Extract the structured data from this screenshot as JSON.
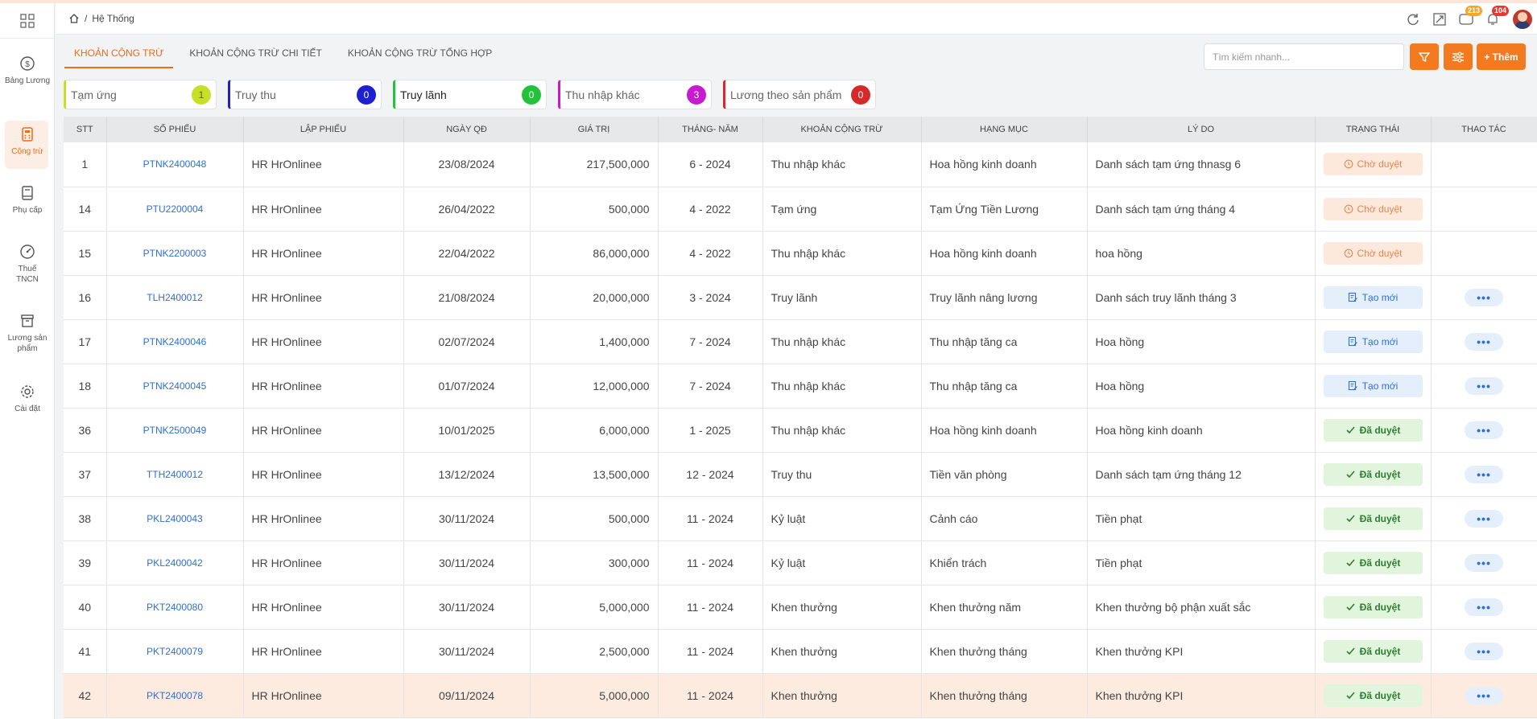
{
  "breadcrumb": {
    "home_icon": "home-icon",
    "sep": "/",
    "current": "Hệ Thống"
  },
  "sidebar": {
    "items": [
      {
        "label": "Bảng Lương",
        "icon": "dollar-icon"
      },
      {
        "label": "Cộng trừ",
        "icon": "calculator-icon",
        "active": true
      },
      {
        "label": "Phụ cấp",
        "icon": "book-icon"
      },
      {
        "label": "Thuế TNCN",
        "icon": "gauge-icon"
      },
      {
        "label": "Lương sản phẩm",
        "icon": "box-icon"
      },
      {
        "label": "Cài đặt",
        "icon": "gear-icon"
      }
    ]
  },
  "header": {
    "badge_messages": "213",
    "badge_notifications": "104"
  },
  "tabs": [
    "KHOẢN CỘNG TRỪ",
    "KHOẢN CỘNG TRỪ CHI TIẾT",
    "KHOẢN CỘNG TRỪ TỔNG HỢP"
  ],
  "search": {
    "placeholder": "Tìm kiếm nhanh..."
  },
  "add_button": "+ Thêm",
  "cards": [
    {
      "label": "Tạm ứng",
      "count": "1",
      "color": "#c6e02a"
    },
    {
      "label": "Truy thu",
      "count": "0",
      "color": "#1d1fd0"
    },
    {
      "label": "Truy lãnh",
      "count": "0",
      "color": "#22c23b"
    },
    {
      "label": "Thu nhập khác",
      "count": "3",
      "color": "#c81ad0"
    },
    {
      "label": "Lương theo sản phẩm",
      "count": "0",
      "color": "#d42a2a"
    }
  ],
  "table": {
    "headers": [
      "STT",
      "SỐ PHIẾU",
      "LẬP PHIẾU",
      "NGÀY QĐ",
      "GIÁ TRỊ",
      "THÁNG- NĂM",
      "KHOẢN CỘNG TRỪ",
      "HẠNG MỤC",
      "LÝ DO",
      "TRẠNG THÁI",
      "THAO TÁC"
    ],
    "rows": [
      {
        "stt": "1",
        "so_phieu": "PTNK2400048",
        "lap_phieu": "HR HrOnlinee",
        "ngay": "23/08/2024",
        "gia_tri": "217,500,000",
        "thang": "6 - 2024",
        "khoan": "Thu nhập khác",
        "hang_muc": "Hoa hồng kinh doanh",
        "ly_do": "Danh sách tạm ứng thnasg 6",
        "status": "Chờ duyệt",
        "status_type": "pending",
        "action": false
      },
      {
        "stt": "14",
        "so_phieu": "PTU2200004",
        "lap_phieu": "HR HrOnlinee",
        "ngay": "26/04/2022",
        "gia_tri": "500,000",
        "thang": "4 - 2022",
        "khoan": "Tạm ứng",
        "hang_muc": "Tạm Ứng Tiền Lương",
        "ly_do": "Danh sách tạm ứng tháng 4",
        "status": "Chờ duyệt",
        "status_type": "pending",
        "action": false
      },
      {
        "stt": "15",
        "so_phieu": "PTNK2200003",
        "lap_phieu": "HR HrOnlinee",
        "ngay": "22/04/2022",
        "gia_tri": "86,000,000",
        "thang": "4 - 2022",
        "khoan": "Thu nhập khác",
        "hang_muc": "Hoa hồng kinh doanh",
        "ly_do": "hoa hồng",
        "status": "Chờ duyệt",
        "status_type": "pending",
        "action": false
      },
      {
        "stt": "16",
        "so_phieu": "TLH2400012",
        "lap_phieu": "HR HrOnlinee",
        "ngay": "21/08/2024",
        "gia_tri": "20,000,000",
        "thang": "3 - 2024",
        "khoan": "Truy lãnh",
        "hang_muc": "Truy lãnh nâng lương",
        "ly_do": "Danh sách truy lãnh tháng 3",
        "status": "Tạo mới",
        "status_type": "new",
        "action": true
      },
      {
        "stt": "17",
        "so_phieu": "PTNK2400046",
        "lap_phieu": "HR HrOnlinee",
        "ngay": "02/07/2024",
        "gia_tri": "1,400,000",
        "thang": "7 - 2024",
        "khoan": "Thu nhập khác",
        "hang_muc": "Thu nhập tăng ca",
        "ly_do": "Hoa hồng",
        "status": "Tạo mới",
        "status_type": "new",
        "action": true
      },
      {
        "stt": "18",
        "so_phieu": "PTNK2400045",
        "lap_phieu": "HR HrOnlinee",
        "ngay": "01/07/2024",
        "gia_tri": "12,000,000",
        "thang": "7 - 2024",
        "khoan": "Thu nhập khác",
        "hang_muc": "Thu nhập tăng ca",
        "ly_do": "Hoa hồng",
        "status": "Tạo mới",
        "status_type": "new",
        "action": true
      },
      {
        "stt": "36",
        "so_phieu": "PTNK2500049",
        "lap_phieu": "HR HrOnlinee",
        "ngay": "10/01/2025",
        "gia_tri": "6,000,000",
        "thang": "1 - 2025",
        "khoan": "Thu nhập khác",
        "hang_muc": "Hoa hồng kinh doanh",
        "ly_do": "Hoa hồng kinh doanh",
        "status": "Đã duyệt",
        "status_type": "done",
        "action": true
      },
      {
        "stt": "37",
        "so_phieu": "TTH2400012",
        "lap_phieu": "HR HrOnlinee",
        "ngay": "13/12/2024",
        "gia_tri": "13,500,000",
        "thang": "12 - 2024",
        "khoan": "Truy thu",
        "hang_muc": "Tiền văn phòng",
        "ly_do": "Danh sách tạm ứng tháng 12",
        "status": "Đã duyệt",
        "status_type": "done",
        "action": true
      },
      {
        "stt": "38",
        "so_phieu": "PKL2400043",
        "lap_phieu": "HR HrOnlinee",
        "ngay": "30/11/2024",
        "gia_tri": "500,000",
        "thang": "11 - 2024",
        "khoan": "Kỷ luật",
        "hang_muc": "Cảnh cáo",
        "ly_do": "Tiền phạt",
        "status": "Đã duyệt",
        "status_type": "done",
        "action": true
      },
      {
        "stt": "39",
        "so_phieu": "PKL2400042",
        "lap_phieu": "HR HrOnlinee",
        "ngay": "30/11/2024",
        "gia_tri": "300,000",
        "thang": "11 - 2024",
        "khoan": "Kỷ luật",
        "hang_muc": "Khiển trách",
        "ly_do": "Tiền phạt",
        "status": "Đã duyệt",
        "status_type": "done",
        "action": true
      },
      {
        "stt": "40",
        "so_phieu": "PKT2400080",
        "lap_phieu": "HR HrOnlinee",
        "ngay": "30/11/2024",
        "gia_tri": "5,000,000",
        "thang": "11 - 2024",
        "khoan": "Khen thưởng",
        "hang_muc": "Khen thưởng năm",
        "ly_do": "Khen thưởng bộ phận xuất sắc",
        "status": "Đã duyệt",
        "status_type": "done",
        "action": true
      },
      {
        "stt": "41",
        "so_phieu": "PKT2400079",
        "lap_phieu": "HR HrOnlinee",
        "ngay": "30/11/2024",
        "gia_tri": "2,500,000",
        "thang": "11 - 2024",
        "khoan": "Khen thưởng",
        "hang_muc": "Khen thưởng tháng",
        "ly_do": "Khen thưởng KPI",
        "status": "Đã duyệt",
        "status_type": "done",
        "action": true
      },
      {
        "stt": "42",
        "so_phieu": "PKT2400078",
        "lap_phieu": "HR HrOnlinee",
        "ngay": "09/11/2024",
        "gia_tri": "5,000,000",
        "thang": "11 - 2024",
        "khoan": "Khen thưởng",
        "hang_muc": "Khen thưởng tháng",
        "ly_do": "Khen thưởng KPI",
        "status": "Đã duyệt",
        "status_type": "done",
        "action": true,
        "highlight": true
      }
    ]
  },
  "colors": {
    "accent": "#f47a20",
    "link": "#2f6fd0"
  }
}
